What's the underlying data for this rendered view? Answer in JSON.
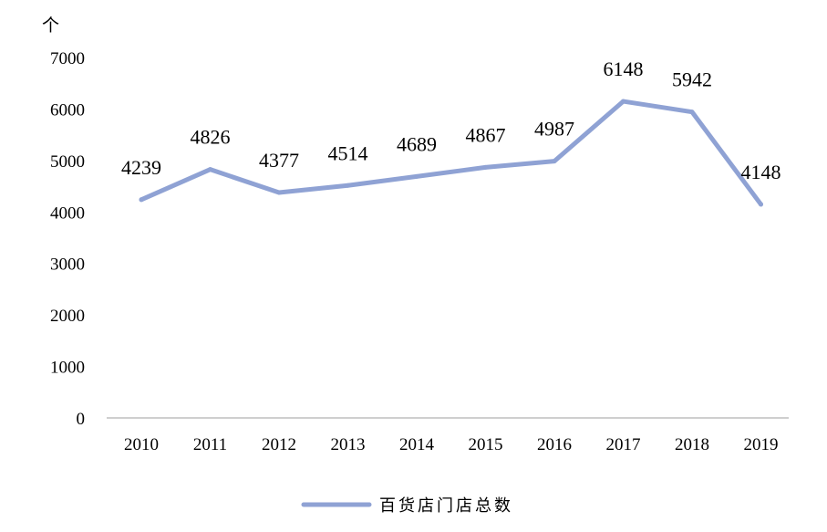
{
  "chart_data": {
    "type": "line",
    "title": "",
    "xlabel": "",
    "ylabel": "个",
    "ylim": [
      0,
      7000
    ],
    "yticks": [
      0,
      1000,
      2000,
      3000,
      4000,
      5000,
      6000,
      7000
    ],
    "categories": [
      "2010",
      "2011",
      "2012",
      "2013",
      "2014",
      "2015",
      "2016",
      "2017",
      "2018",
      "2019"
    ],
    "series": [
      {
        "name": "百货店门店总数",
        "values": [
          4239,
          4826,
          4377,
          4514,
          4689,
          4867,
          4987,
          6148,
          5942,
          4148
        ],
        "color": "#8fa2d4"
      }
    ],
    "grid": false,
    "legend": "bottom",
    "data_labels": true
  }
}
